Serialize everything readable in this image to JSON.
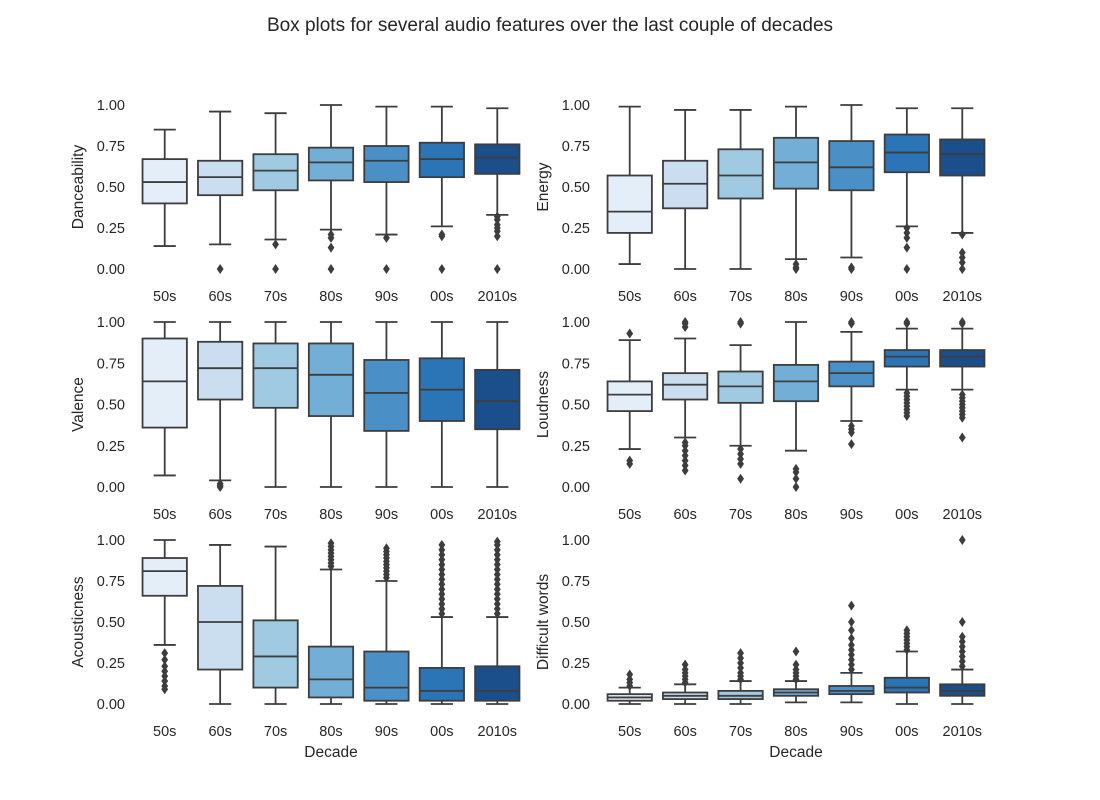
{
  "figure_title": "Box plots for several audio features over the last couple of decades",
  "chart_data": [
    {
      "type": "box",
      "ylabel": "Danceability",
      "xlabel": "",
      "ylim": [
        0,
        1
      ],
      "yticks": [
        "0.00",
        "0.25",
        "0.50",
        "0.75",
        "1.00"
      ],
      "categories": [
        "50s",
        "60s",
        "70s",
        "80s",
        "90s",
        "00s",
        "2010s"
      ],
      "boxes": [
        {
          "whislo": 0.14,
          "q1": 0.4,
          "med": 0.53,
          "q3": 0.67,
          "whishi": 0.85,
          "fliers": []
        },
        {
          "whislo": 0.15,
          "q1": 0.45,
          "med": 0.56,
          "q3": 0.66,
          "whishi": 0.96,
          "fliers": [
            0.0
          ]
        },
        {
          "whislo": 0.18,
          "q1": 0.48,
          "med": 0.6,
          "q3": 0.7,
          "whishi": 0.95,
          "fliers": [
            0.0,
            0.15
          ]
        },
        {
          "whislo": 0.24,
          "q1": 0.54,
          "med": 0.65,
          "q3": 0.74,
          "whishi": 1.0,
          "fliers": [
            0.0,
            0.13,
            0.19,
            0.21
          ]
        },
        {
          "whislo": 0.21,
          "q1": 0.53,
          "med": 0.66,
          "q3": 0.75,
          "whishi": 0.99,
          "fliers": [
            0.0,
            0.19
          ]
        },
        {
          "whislo": 0.26,
          "q1": 0.56,
          "med": 0.67,
          "q3": 0.77,
          "whishi": 0.99,
          "fliers": [
            0.0,
            0.2,
            0.21
          ]
        },
        {
          "whislo": 0.33,
          "q1": 0.58,
          "med": 0.68,
          "q3": 0.76,
          "whishi": 0.98,
          "fliers": [
            0.0,
            0.2,
            0.23,
            0.25,
            0.27,
            0.3,
            0.32
          ]
        }
      ]
    },
    {
      "type": "box",
      "ylabel": "Energy",
      "xlabel": "",
      "ylim": [
        0,
        1
      ],
      "yticks": [
        "0.00",
        "0.25",
        "0.50",
        "0.75",
        "1.00"
      ],
      "categories": [
        "50s",
        "60s",
        "70s",
        "80s",
        "90s",
        "00s",
        "2010s"
      ],
      "boxes": [
        {
          "whislo": 0.03,
          "q1": 0.22,
          "med": 0.35,
          "q3": 0.57,
          "whishi": 0.99,
          "fliers": []
        },
        {
          "whislo": 0.0,
          "q1": 0.37,
          "med": 0.52,
          "q3": 0.66,
          "whishi": 0.97,
          "fliers": []
        },
        {
          "whislo": 0.0,
          "q1": 0.43,
          "med": 0.57,
          "q3": 0.73,
          "whishi": 0.97,
          "fliers": []
        },
        {
          "whislo": 0.06,
          "q1": 0.49,
          "med": 0.65,
          "q3": 0.8,
          "whishi": 0.99,
          "fliers": [
            0.0,
            0.01,
            0.03
          ]
        },
        {
          "whislo": 0.07,
          "q1": 0.48,
          "med": 0.62,
          "q3": 0.78,
          "whishi": 1.0,
          "fliers": [
            0.0,
            0.01
          ]
        },
        {
          "whislo": 0.26,
          "q1": 0.59,
          "med": 0.71,
          "q3": 0.82,
          "whishi": 0.98,
          "fliers": [
            0.0,
            0.13,
            0.19,
            0.22,
            0.25
          ]
        },
        {
          "whislo": 0.22,
          "q1": 0.57,
          "med": 0.7,
          "q3": 0.79,
          "whishi": 0.98,
          "fliers": [
            0.0,
            0.04,
            0.07,
            0.1,
            0.21
          ]
        }
      ]
    },
    {
      "type": "box",
      "ylabel": "Valence",
      "xlabel": "",
      "ylim": [
        0,
        1
      ],
      "yticks": [
        "0.00",
        "0.25",
        "0.50",
        "0.75",
        "1.00"
      ],
      "categories": [
        "50s",
        "60s",
        "70s",
        "80s",
        "90s",
        "00s",
        "2010s"
      ],
      "boxes": [
        {
          "whislo": 0.07,
          "q1": 0.36,
          "med": 0.64,
          "q3": 0.9,
          "whishi": 1.0,
          "fliers": []
        },
        {
          "whislo": 0.04,
          "q1": 0.53,
          "med": 0.72,
          "q3": 0.88,
          "whishi": 1.0,
          "fliers": [
            0.0,
            0.01,
            0.02
          ]
        },
        {
          "whislo": 0.0,
          "q1": 0.48,
          "med": 0.72,
          "q3": 0.87,
          "whishi": 1.0,
          "fliers": []
        },
        {
          "whislo": 0.0,
          "q1": 0.43,
          "med": 0.68,
          "q3": 0.87,
          "whishi": 1.0,
          "fliers": []
        },
        {
          "whislo": 0.0,
          "q1": 0.34,
          "med": 0.57,
          "q3": 0.77,
          "whishi": 1.0,
          "fliers": []
        },
        {
          "whislo": 0.0,
          "q1": 0.4,
          "med": 0.59,
          "q3": 0.78,
          "whishi": 1.0,
          "fliers": []
        },
        {
          "whislo": 0.0,
          "q1": 0.35,
          "med": 0.52,
          "q3": 0.71,
          "whishi": 1.0,
          "fliers": []
        }
      ]
    },
    {
      "type": "box",
      "ylabel": "Loudness",
      "xlabel": "",
      "ylim": [
        0,
        1
      ],
      "yticks": [
        "0.00",
        "0.25",
        "0.50",
        "0.75",
        "1.00"
      ],
      "categories": [
        "50s",
        "60s",
        "70s",
        "80s",
        "90s",
        "00s",
        "2010s"
      ],
      "boxes": [
        {
          "whislo": 0.23,
          "q1": 0.46,
          "med": 0.56,
          "q3": 0.64,
          "whishi": 0.89,
          "fliers": [
            0.14,
            0.16,
            0.93
          ]
        },
        {
          "whislo": 0.3,
          "q1": 0.53,
          "med": 0.62,
          "q3": 0.69,
          "whishi": 0.9,
          "fliers": [
            0.1,
            0.13,
            0.16,
            0.19,
            0.22,
            0.25,
            0.27,
            0.97,
            0.99,
            1.0
          ]
        },
        {
          "whislo": 0.25,
          "q1": 0.51,
          "med": 0.61,
          "q3": 0.7,
          "whishi": 0.86,
          "fliers": [
            0.05,
            0.14,
            0.17,
            0.2,
            0.23,
            0.99,
            1.0
          ]
        },
        {
          "whislo": 0.22,
          "q1": 0.52,
          "med": 0.64,
          "q3": 0.74,
          "whishi": 1.0,
          "fliers": [
            0.0,
            0.05,
            0.09,
            0.11
          ]
        },
        {
          "whislo": 0.4,
          "q1": 0.61,
          "med": 0.69,
          "q3": 0.76,
          "whishi": 0.94,
          "fliers": [
            0.26,
            0.33,
            0.35,
            0.37,
            0.99,
            1.0
          ]
        },
        {
          "whislo": 0.59,
          "q1": 0.73,
          "med": 0.79,
          "q3": 0.83,
          "whishi": 0.96,
          "fliers": [
            0.43,
            0.45,
            0.47,
            0.49,
            0.51,
            0.53,
            0.55,
            0.57,
            0.99,
            1.0
          ]
        },
        {
          "whislo": 0.59,
          "q1": 0.73,
          "med": 0.79,
          "q3": 0.83,
          "whishi": 0.96,
          "fliers": [
            0.3,
            0.42,
            0.44,
            0.46,
            0.48,
            0.5,
            0.52,
            0.54,
            0.56,
            0.99,
            1.0
          ]
        }
      ]
    },
    {
      "type": "box",
      "ylabel": "Acousticness",
      "xlabel": "Decade",
      "ylim": [
        0,
        1
      ],
      "yticks": [
        "0.00",
        "0.25",
        "0.50",
        "0.75",
        "1.00"
      ],
      "categories": [
        "50s",
        "60s",
        "70s",
        "80s",
        "90s",
        "00s",
        "2010s"
      ],
      "boxes": [
        {
          "whislo": 0.36,
          "q1": 0.66,
          "med": 0.81,
          "q3": 0.89,
          "whishi": 1.0,
          "fliers": [
            0.09,
            0.11,
            0.14,
            0.17,
            0.2,
            0.23,
            0.27,
            0.31
          ]
        },
        {
          "whislo": 0.0,
          "q1": 0.21,
          "med": 0.5,
          "q3": 0.72,
          "whishi": 0.97,
          "fliers": []
        },
        {
          "whislo": 0.0,
          "q1": 0.1,
          "med": 0.29,
          "q3": 0.51,
          "whishi": 0.96,
          "fliers": []
        },
        {
          "whislo": 0.0,
          "q1": 0.04,
          "med": 0.15,
          "q3": 0.35,
          "whishi": 0.82,
          "fliers": [
            0.84,
            0.86,
            0.88,
            0.9,
            0.92,
            0.94,
            0.96,
            0.98
          ]
        },
        {
          "whislo": 0.0,
          "q1": 0.02,
          "med": 0.1,
          "q3": 0.32,
          "whishi": 0.75,
          "fliers": [
            0.77,
            0.79,
            0.81,
            0.83,
            0.85,
            0.87,
            0.89,
            0.91,
            0.93,
            0.95
          ]
        },
        {
          "whislo": 0.0,
          "q1": 0.02,
          "med": 0.08,
          "q3": 0.22,
          "whishi": 0.53,
          "fliers": [
            0.55,
            0.58,
            0.61,
            0.64,
            0.67,
            0.7,
            0.73,
            0.76,
            0.79,
            0.82,
            0.85,
            0.88,
            0.91,
            0.94,
            0.97
          ]
        },
        {
          "whislo": 0.0,
          "q1": 0.02,
          "med": 0.08,
          "q3": 0.23,
          "whishi": 0.53,
          "fliers": [
            0.55,
            0.58,
            0.61,
            0.64,
            0.67,
            0.7,
            0.73,
            0.76,
            0.79,
            0.82,
            0.85,
            0.88,
            0.91,
            0.94,
            0.97,
            0.99
          ]
        }
      ]
    },
    {
      "type": "box",
      "ylabel": "Difficult words",
      "xlabel": "Decade",
      "ylim": [
        0,
        1
      ],
      "yticks": [
        "0.00",
        "0.25",
        "0.50",
        "0.75",
        "1.00"
      ],
      "categories": [
        "50s",
        "60s",
        "70s",
        "80s",
        "90s",
        "00s",
        "2010s"
      ],
      "boxes": [
        {
          "whislo": 0.0,
          "q1": 0.02,
          "med": 0.04,
          "q3": 0.06,
          "whishi": 0.1,
          "fliers": [
            0.11,
            0.13,
            0.15,
            0.18
          ]
        },
        {
          "whislo": 0.0,
          "q1": 0.03,
          "med": 0.05,
          "q3": 0.07,
          "whishi": 0.12,
          "fliers": [
            0.13,
            0.15,
            0.17,
            0.19,
            0.21,
            0.24
          ]
        },
        {
          "whislo": 0.0,
          "q1": 0.03,
          "med": 0.05,
          "q3": 0.08,
          "whishi": 0.14,
          "fliers": [
            0.15,
            0.17,
            0.19,
            0.22,
            0.25,
            0.28,
            0.31
          ]
        },
        {
          "whislo": 0.01,
          "q1": 0.05,
          "med": 0.07,
          "q3": 0.09,
          "whishi": 0.14,
          "fliers": [
            0.15,
            0.17,
            0.19,
            0.21,
            0.24,
            0.32
          ]
        },
        {
          "whislo": 0.01,
          "q1": 0.06,
          "med": 0.08,
          "q3": 0.11,
          "whishi": 0.19,
          "fliers": [
            0.21,
            0.24,
            0.27,
            0.3,
            0.33,
            0.36,
            0.4,
            0.45,
            0.5,
            0.6
          ]
        },
        {
          "whislo": 0.0,
          "q1": 0.07,
          "med": 0.1,
          "q3": 0.16,
          "whishi": 0.32,
          "fliers": [
            0.33,
            0.35,
            0.37,
            0.39,
            0.41,
            0.43,
            0.45
          ]
        },
        {
          "whislo": 0.0,
          "q1": 0.05,
          "med": 0.08,
          "q3": 0.12,
          "whishi": 0.21,
          "fliers": [
            0.23,
            0.26,
            0.29,
            0.32,
            0.35,
            0.38,
            0.41,
            0.5,
            1.0
          ]
        }
      ]
    }
  ],
  "colors": {
    "boxes": [
      "#e3eef9",
      "#cadef0",
      "#a0cae1",
      "#72aed6",
      "#4a90c7",
      "#2b74b6",
      "#1a4f8c"
    ],
    "line": "#3d3d3d",
    "text": "#262626",
    "background": "#ffffff"
  }
}
